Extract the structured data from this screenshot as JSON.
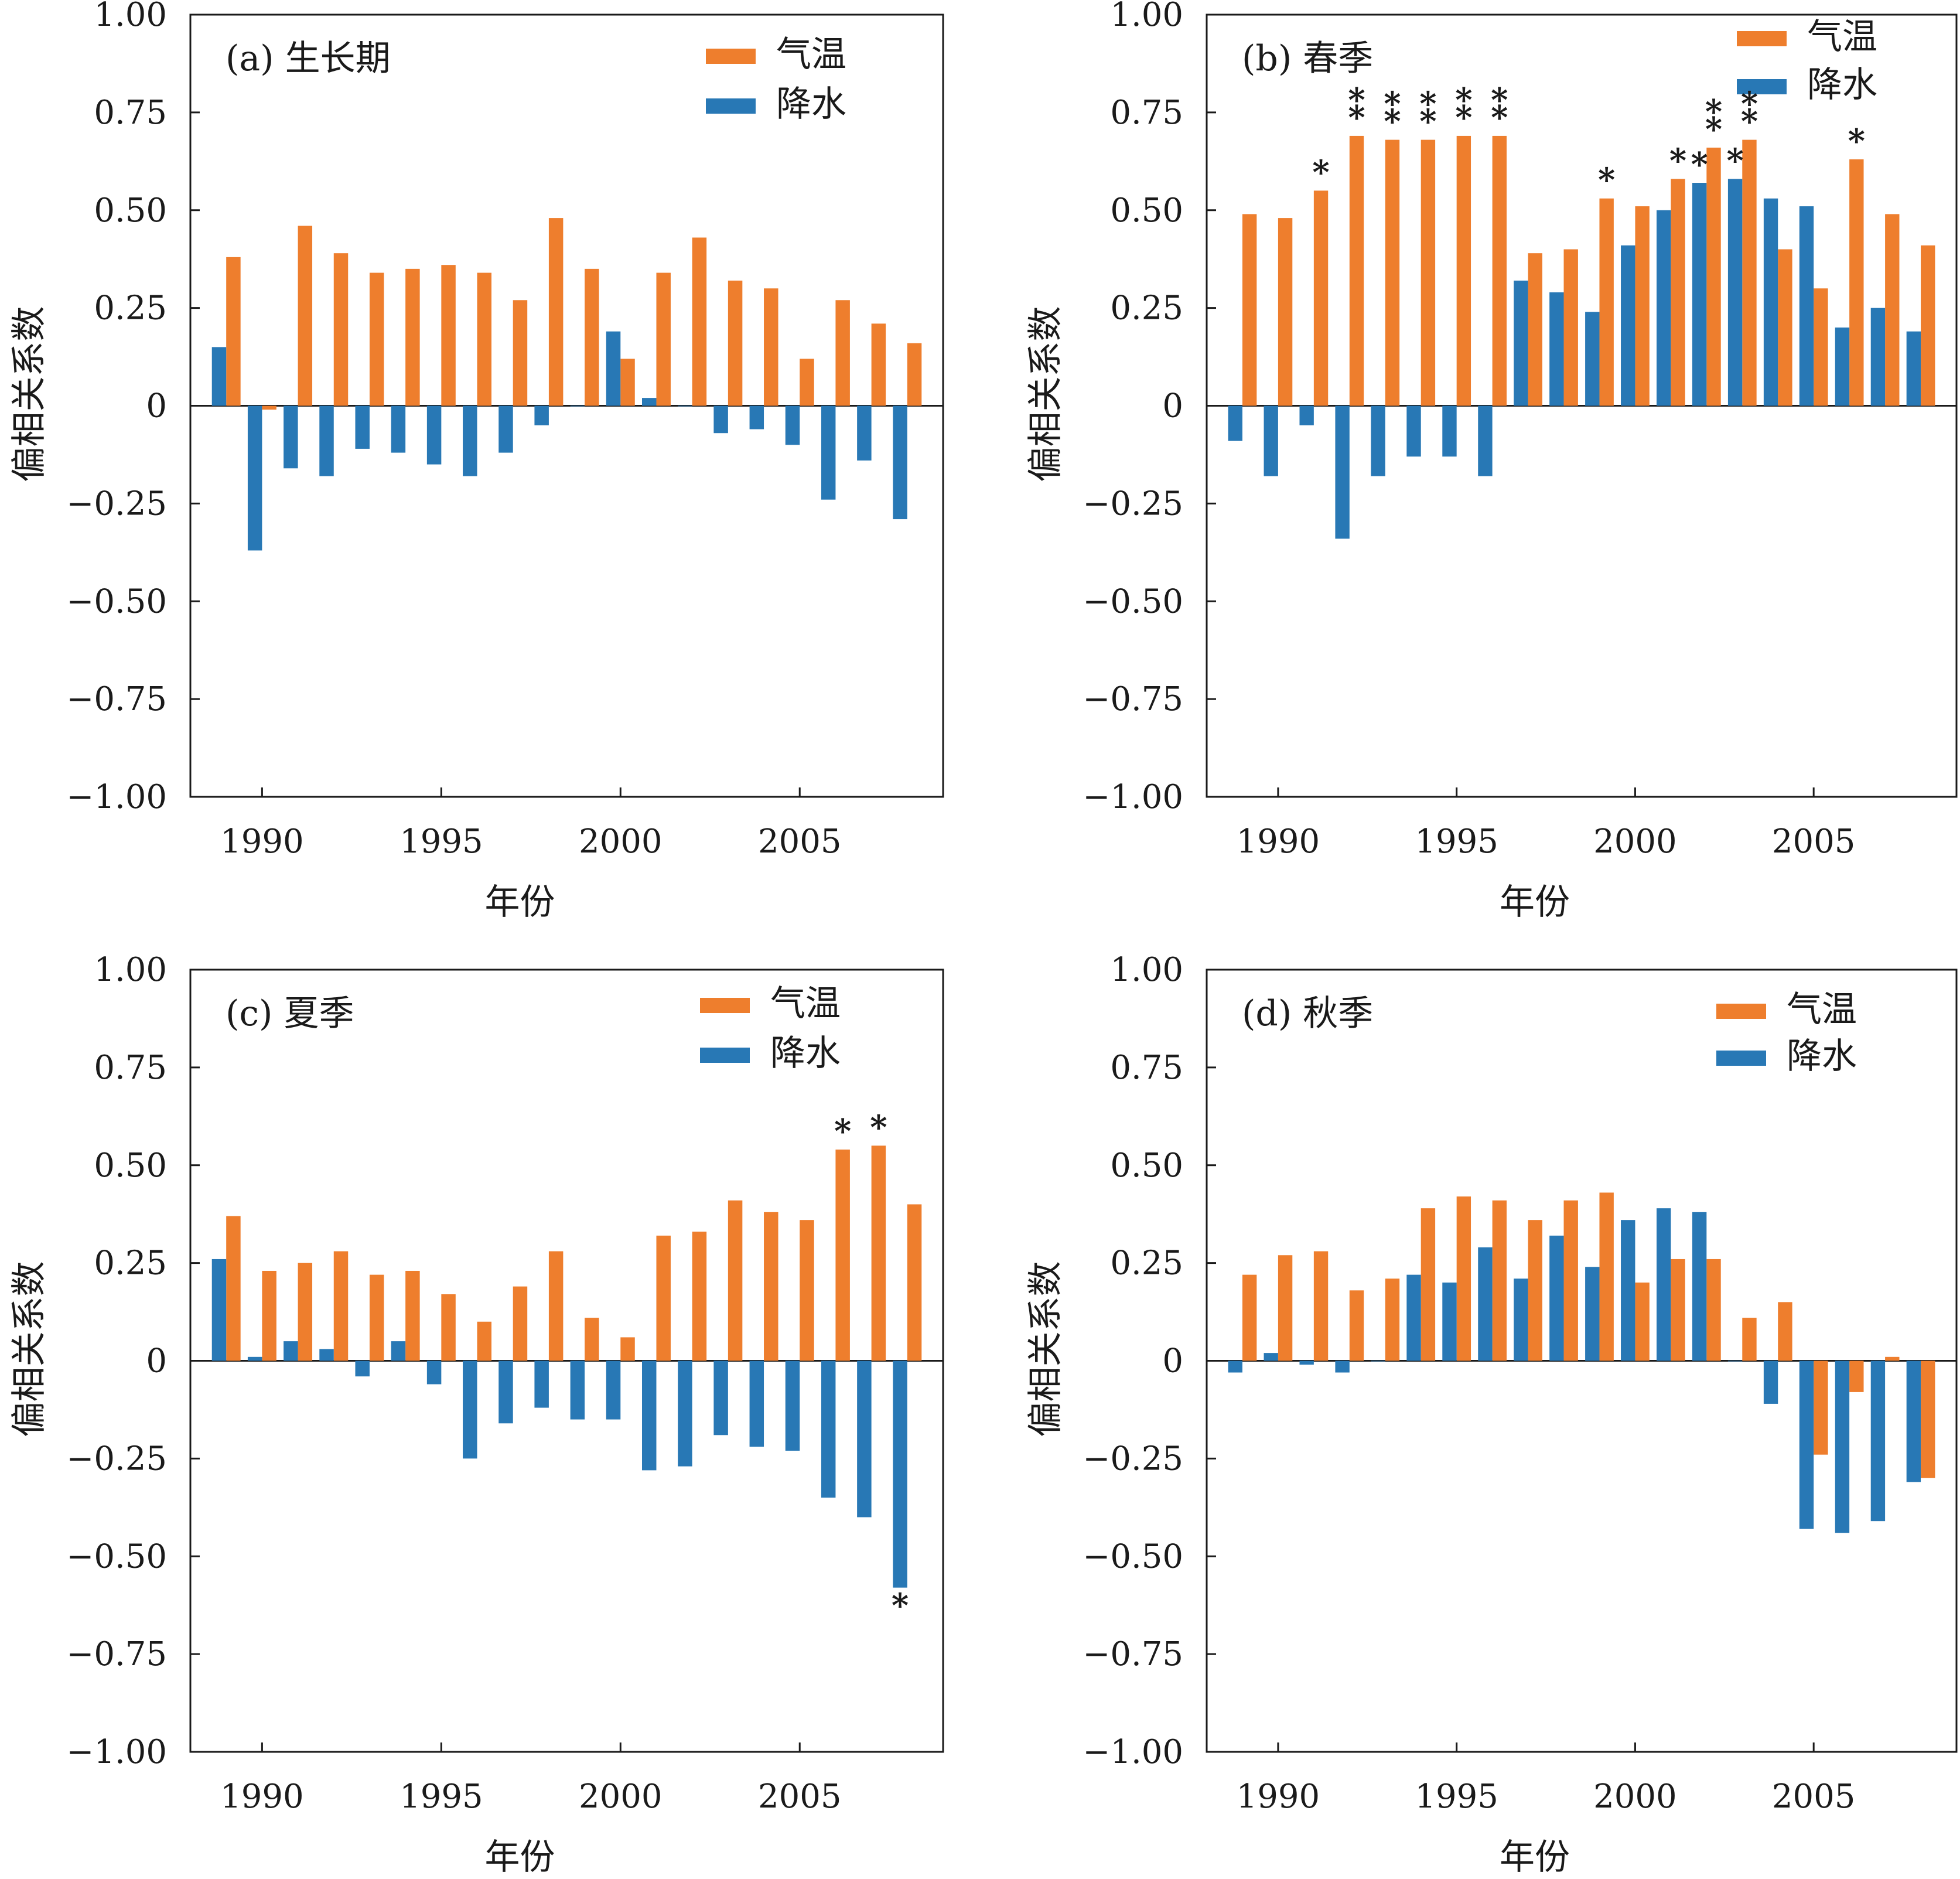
{
  "colors": {
    "temperature": "#EE7E2D",
    "precipitation": "#2878B5",
    "axis": "#1a1a1a"
  },
  "chart_data": [
    {
      "type": "bar",
      "title": "(a) 生长期",
      "xlabel": "年份",
      "ylabel": "偏相关系数",
      "ylim": [
        -1.0,
        1.0
      ],
      "yticks": [
        "1.00",
        "0.75",
        "0.50",
        "0.25",
        "0",
        "−0.25",
        "−0.50",
        "−0.75",
        "−1.00"
      ],
      "xticks": [
        "1990",
        "1995",
        "2000",
        "2005"
      ],
      "xlim": [
        1988.0,
        2009.0
      ],
      "legend": {
        "position": "top-right",
        "entries": [
          "气温",
          "降水"
        ]
      },
      "x": [
        1989,
        1990,
        1991,
        1992,
        1993,
        1994,
        1995,
        1996,
        1997,
        1998,
        1999,
        2000,
        2001,
        2002,
        2003,
        2004,
        2005,
        2006,
        2007,
        2008
      ],
      "series": [
        {
          "name": "气温",
          "values": [
            0.38,
            -0.01,
            0.46,
            0.39,
            0.34,
            0.35,
            0.36,
            0.34,
            0.27,
            0.48,
            0.35,
            0.12,
            0.34,
            0.43,
            0.32,
            0.3,
            0.12,
            0.27,
            0.21,
            0.16
          ],
          "stars": [
            "",
            "",
            "",
            "",
            "",
            "",
            "",
            "",
            "",
            "",
            "",
            "",
            "",
            "",
            "",
            "",
            "",
            "",
            "",
            ""
          ]
        },
        {
          "name": "降水",
          "values": [
            0.15,
            -0.37,
            -0.16,
            -0.18,
            -0.11,
            -0.12,
            -0.15,
            -0.18,
            -0.12,
            -0.05,
            0.0,
            0.19,
            0.02,
            0.0,
            -0.07,
            -0.06,
            -0.1,
            -0.24,
            -0.14,
            -0.29
          ],
          "stars": [
            "",
            "",
            "",
            "",
            "",
            "",
            "",
            "",
            "",
            "",
            "",
            "",
            "",
            "",
            "",
            "",
            "",
            "",
            "",
            ""
          ]
        }
      ]
    },
    {
      "type": "bar",
      "title": "(b) 春季",
      "xlabel": "年份",
      "ylabel": "偏相关系数",
      "ylim": [
        -1.0,
        1.0
      ],
      "yticks": [
        "1.00",
        "0.75",
        "0.50",
        "0.25",
        "0",
        "−0.25",
        "−0.50",
        "−0.75",
        "−1.00"
      ],
      "xticks": [
        "1990",
        "1995",
        "2000",
        "2005"
      ],
      "xlim": [
        1988.0,
        2009.0
      ],
      "legend": {
        "position": "top-right",
        "entries": [
          "气温",
          "降水"
        ]
      },
      "x": [
        1989,
        1990,
        1991,
        1992,
        1993,
        1994,
        1995,
        1996,
        1997,
        1998,
        1999,
        2000,
        2001,
        2002,
        2003,
        2004,
        2005,
        2006,
        2007,
        2008
      ],
      "series": [
        {
          "name": "气温",
          "values": [
            0.49,
            0.48,
            0.55,
            0.69,
            0.68,
            0.68,
            0.69,
            0.69,
            0.39,
            0.4,
            0.53,
            0.51,
            0.58,
            0.66,
            0.68,
            0.4,
            0.3,
            0.63,
            0.49,
            0.41
          ],
          "stars": [
            "",
            "",
            "*",
            "**",
            "**",
            "**",
            "**",
            "**",
            "",
            "",
            "*",
            "",
            "*",
            "**",
            "**",
            "",
            "",
            "*",
            "",
            ""
          ]
        },
        {
          "name": "降水",
          "values": [
            -0.09,
            -0.18,
            -0.05,
            -0.34,
            -0.18,
            -0.13,
            -0.13,
            -0.18,
            0.32,
            0.29,
            0.24,
            0.41,
            0.5,
            0.57,
            0.58,
            0.53,
            0.51,
            0.2,
            0.25,
            0.19
          ],
          "stars": [
            "",
            "",
            "",
            "",
            "",
            "",
            "",
            "",
            "",
            "",
            "",
            "",
            "",
            "*",
            "*",
            "",
            "",
            "",
            "",
            ""
          ]
        }
      ]
    },
    {
      "type": "bar",
      "title": "(c) 夏季",
      "xlabel": "年份",
      "ylabel": "偏相关系数",
      "ylim": [
        -1.0,
        1.0
      ],
      "yticks": [
        "1.00",
        "0.75",
        "0.50",
        "0.25",
        "0",
        "−0.25",
        "−0.50",
        "−0.75",
        "−1.00"
      ],
      "xticks": [
        "1990",
        "1995",
        "2000",
        "2005"
      ],
      "xlim": [
        1988.0,
        2009.0
      ],
      "legend": {
        "position": "top-right",
        "entries": [
          "气温",
          "降水"
        ]
      },
      "x": [
        1989,
        1990,
        1991,
        1992,
        1993,
        1994,
        1995,
        1996,
        1997,
        1998,
        1999,
        2000,
        2001,
        2002,
        2003,
        2004,
        2005,
        2006,
        2007,
        2008
      ],
      "series": [
        {
          "name": "气温",
          "values": [
            0.37,
            0.23,
            0.25,
            0.28,
            0.22,
            0.23,
            0.17,
            0.1,
            0.19,
            0.28,
            0.11,
            0.06,
            0.32,
            0.33,
            0.41,
            0.38,
            0.36,
            0.54,
            0.55,
            0.4
          ],
          "stars": [
            "",
            "",
            "",
            "",
            "",
            "",
            "",
            "",
            "",
            "",
            "",
            "",
            "",
            "",
            "",
            "",
            "",
            "*",
            "*",
            ""
          ]
        },
        {
          "name": "降水",
          "values": [
            0.26,
            0.01,
            0.05,
            0.03,
            -0.04,
            0.05,
            -0.06,
            -0.25,
            -0.16,
            -0.12,
            -0.15,
            -0.15,
            -0.28,
            -0.27,
            -0.19,
            -0.22,
            -0.23,
            -0.35,
            -0.4,
            -0.58
          ],
          "stars": [
            "",
            "",
            "",
            "",
            "",
            "",
            "",
            "",
            "",
            "",
            "",
            "",
            "",
            "",
            "",
            "",
            "",
            "",
            "",
            "*"
          ]
        }
      ]
    },
    {
      "type": "bar",
      "title": "(d) 秋季",
      "xlabel": "年份",
      "ylabel": "偏相关系数",
      "ylim": [
        -1.0,
        1.0
      ],
      "yticks": [
        "1.00",
        "0.75",
        "0.50",
        "0.25",
        "0",
        "−0.25",
        "−0.50",
        "−0.75",
        "−1.00"
      ],
      "xticks": [
        "1990",
        "1995",
        "2000",
        "2005"
      ],
      "xlim": [
        1988.0,
        2009.0
      ],
      "legend": {
        "position": "top-right",
        "entries": [
          "气温",
          "降水"
        ]
      },
      "x": [
        1989,
        1990,
        1991,
        1992,
        1993,
        1994,
        1995,
        1996,
        1997,
        1998,
        1999,
        2000,
        2001,
        2002,
        2003,
        2004,
        2005,
        2006,
        2007,
        2008
      ],
      "series": [
        {
          "name": "气温",
          "values": [
            0.22,
            0.27,
            0.28,
            0.18,
            0.21,
            0.39,
            0.42,
            0.41,
            0.36,
            0.41,
            0.43,
            0.2,
            0.26,
            0.26,
            0.11,
            0.15,
            -0.24,
            -0.08,
            0.01,
            -0.3
          ],
          "stars": [
            "",
            "",
            "",
            "",
            "",
            "",
            "",
            "",
            "",
            "",
            "",
            "",
            "",
            "",
            "",
            "",
            "",
            "",
            "",
            ""
          ]
        },
        {
          "name": "降水",
          "values": [
            -0.03,
            0.02,
            -0.01,
            -0.03,
            0.0,
            0.22,
            0.2,
            0.29,
            0.21,
            0.32,
            0.24,
            0.36,
            0.39,
            0.38,
            0.0,
            -0.11,
            -0.43,
            -0.44,
            -0.41,
            -0.31
          ],
          "stars": [
            "",
            "",
            "",
            "",
            "",
            "",
            "",
            "",
            "",
            "",
            "",
            "",
            "",
            "",
            "",
            "",
            "",
            "",
            "",
            ""
          ]
        }
      ]
    }
  ]
}
